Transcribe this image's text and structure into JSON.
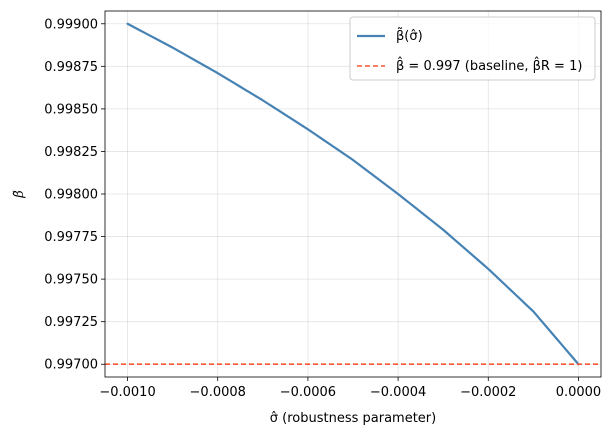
{
  "chart_data": {
    "type": "line",
    "xlabel": "σ̂ (robustness parameter)",
    "ylabel": "β̃",
    "xlim": [
      -0.00105,
      5e-05
    ],
    "ylim": [
      0.996925,
      0.999075
    ],
    "xticks": [
      -0.001,
      -0.0008,
      -0.0006,
      -0.0004,
      -0.0002,
      0.0
    ],
    "xtick_labels": [
      "−0.0010",
      "−0.0008",
      "−0.0006",
      "−0.0004",
      "−0.0002",
      "0.0000"
    ],
    "yticks": [
      0.997,
      0.99725,
      0.9975,
      0.99775,
      0.998,
      0.99825,
      0.9985,
      0.99875,
      0.999
    ],
    "ytick_labels": [
      "0.99700",
      "0.99725",
      "0.99750",
      "0.99775",
      "0.99800",
      "0.99825",
      "0.99850",
      "0.99875",
      "0.99900"
    ],
    "grid": true,
    "legend_position": "upper right",
    "series": [
      {
        "name": "β̃(σ̂)",
        "color": "#4682b4",
        "style": "solid",
        "x": [
          -0.001,
          -0.0009,
          -0.0008,
          -0.0007,
          -0.0006,
          -0.0005,
          -0.0004,
          -0.0003,
          -0.0002,
          -0.0001,
          0.0
        ],
        "y": [
          0.999,
          0.99886,
          0.99871,
          0.99855,
          0.99838,
          0.9982,
          0.998,
          0.99779,
          0.99756,
          0.99731,
          0.997
        ]
      },
      {
        "name": "β̂ = 0.997 (baseline, β̂R = 1)",
        "color": "#ff5733",
        "style": "dashed",
        "hline": 0.997
      }
    ]
  }
}
